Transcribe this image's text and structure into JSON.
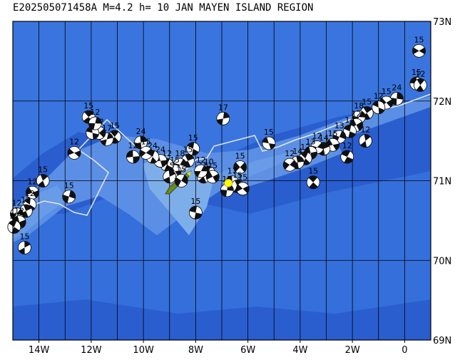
{
  "title": "E202505071458A M=4.2 h= 10 JAN MAYEN ISLAND REGION",
  "map": {
    "lon_range": [
      -15.0,
      1.0
    ],
    "lat_range": [
      69.0,
      73.0
    ],
    "lon_labels": [
      {
        "lon": -14,
        "text": "14W"
      },
      {
        "lon": -12,
        "text": "12W"
      },
      {
        "lon": -10,
        "text": "10W"
      },
      {
        "lon": -8,
        "text": "8W"
      },
      {
        "lon": -6,
        "text": "6W"
      },
      {
        "lon": -4,
        "text": "4W"
      },
      {
        "lon": -2,
        "text": "2W"
      },
      {
        "lon": 0,
        "text": "0"
      }
    ],
    "lat_labels": [
      {
        "lat": 73,
        "text": "73N"
      },
      {
        "lat": 72,
        "text": "72N"
      },
      {
        "lat": 71,
        "text": "71N"
      },
      {
        "lat": 70,
        "text": "70N"
      },
      {
        "lat": 69,
        "text": "69N"
      }
    ],
    "grid_lons": [
      -14,
      -13,
      -12,
      -11,
      -10,
      -9,
      -8,
      -7,
      -6,
      -5,
      -4,
      -3,
      -2,
      -1,
      0
    ],
    "grid_lats": [
      70,
      71,
      72
    ],
    "colors": {
      "ocean_deep": "#2a5ecf",
      "ocean_mid": "#3a75df",
      "ridge": "#5b8fe6",
      "shelf": "#7eaeea",
      "grid": "#000000",
      "plate_boundary": "#e6e6e6",
      "island": "#6a8a1a",
      "epicenter": "#ffff00"
    },
    "island_name_hidden": "",
    "epicenter": {
      "lon": -6.75,
      "lat": 70.97
    }
  },
  "mechanisms": [
    {
      "lon": 0.55,
      "lat": 72.63,
      "depth": "15"
    },
    {
      "lon": 0.45,
      "lat": 72.22,
      "depth": "15"
    },
    {
      "lon": 0.6,
      "lat": 72.2,
      "depth": "12"
    },
    {
      "lon": -0.3,
      "lat": 72.03,
      "depth": "24"
    },
    {
      "lon": -0.7,
      "lat": 71.98,
      "depth": "15"
    },
    {
      "lon": -1.0,
      "lat": 71.92,
      "depth": "12"
    },
    {
      "lon": -1.45,
      "lat": 71.85,
      "depth": "15"
    },
    {
      "lon": -1.75,
      "lat": 71.8,
      "depth": "18"
    },
    {
      "lon": -1.85,
      "lat": 71.7,
      "depth": "12"
    },
    {
      "lon": -2.1,
      "lat": 71.62,
      "depth": "14"
    },
    {
      "lon": -1.5,
      "lat": 71.5,
      "depth": "12"
    },
    {
      "lon": -2.5,
      "lat": 71.55,
      "depth": "13"
    },
    {
      "lon": -2.75,
      "lat": 71.45,
      "depth": "15"
    },
    {
      "lon": -2.2,
      "lat": 71.3,
      "depth": "12"
    },
    {
      "lon": -3.1,
      "lat": 71.4,
      "depth": "14"
    },
    {
      "lon": -3.35,
      "lat": 71.42,
      "depth": "12"
    },
    {
      "lon": -3.6,
      "lat": 71.35,
      "depth": "13"
    },
    {
      "lon": -3.8,
      "lat": 71.28,
      "depth": "12"
    },
    {
      "lon": -4.1,
      "lat": 71.23,
      "depth": "14"
    },
    {
      "lon": -4.4,
      "lat": 71.2,
      "depth": "12"
    },
    {
      "lon": -5.2,
      "lat": 71.47,
      "depth": "15"
    },
    {
      "lon": -3.5,
      "lat": 70.98,
      "depth": "15"
    },
    {
      "lon": -6.95,
      "lat": 71.78,
      "depth": "17"
    },
    {
      "lon": -6.3,
      "lat": 71.17,
      "depth": "15"
    },
    {
      "lon": -6.6,
      "lat": 70.98,
      "depth": "17"
    },
    {
      "lon": -6.4,
      "lat": 70.93,
      "depth": "15"
    },
    {
      "lon": -6.8,
      "lat": 70.88,
      "depth": "15"
    },
    {
      "lon": -6.2,
      "lat": 70.9,
      "depth": "15"
    },
    {
      "lon": -7.5,
      "lat": 71.1,
      "depth": "10"
    },
    {
      "lon": -7.7,
      "lat": 71.05,
      "depth": "15"
    },
    {
      "lon": -7.8,
      "lat": 71.12,
      "depth": "12"
    },
    {
      "lon": -7.35,
      "lat": 71.05,
      "depth": "15"
    },
    {
      "lon": -8.1,
      "lat": 71.4,
      "depth": "15"
    },
    {
      "lon": -8.3,
      "lat": 71.25,
      "depth": "15"
    },
    {
      "lon": -8.6,
      "lat": 71.2,
      "depth": "18"
    },
    {
      "lon": -8.8,
      "lat": 71.12,
      "depth": "15"
    },
    {
      "lon": -9.1,
      "lat": 71.2,
      "depth": "12"
    },
    {
      "lon": -9.0,
      "lat": 71.05,
      "depth": "15"
    },
    {
      "lon": -8.55,
      "lat": 71.0,
      "depth": "15"
    },
    {
      "lon": -9.35,
      "lat": 71.25,
      "depth": "24"
    },
    {
      "lon": -9.65,
      "lat": 71.3,
      "depth": "24"
    },
    {
      "lon": -10.1,
      "lat": 71.48,
      "depth": "24"
    },
    {
      "lon": -9.9,
      "lat": 71.35,
      "depth": "15"
    },
    {
      "lon": -10.4,
      "lat": 71.3,
      "depth": "12"
    },
    {
      "lon": -11.1,
      "lat": 71.55,
      "depth": "15"
    },
    {
      "lon": -11.4,
      "lat": 71.52,
      "depth": "17"
    },
    {
      "lon": -11.7,
      "lat": 71.6,
      "depth": "12"
    },
    {
      "lon": -11.95,
      "lat": 71.6,
      "depth": "12"
    },
    {
      "lon": -12.1,
      "lat": 71.8,
      "depth": "15"
    },
    {
      "lon": -11.85,
      "lat": 71.72,
      "depth": "12"
    },
    {
      "lon": -12.65,
      "lat": 71.35,
      "depth": "12"
    },
    {
      "lon": -8.0,
      "lat": 70.6,
      "depth": "15"
    },
    {
      "lon": -13.85,
      "lat": 71.0,
      "depth": "15"
    },
    {
      "lon": -12.85,
      "lat": 70.8,
      "depth": "15"
    },
    {
      "lon": -14.25,
      "lat": 70.85,
      "depth": "12"
    },
    {
      "lon": -14.35,
      "lat": 70.7,
      "depth": "12"
    },
    {
      "lon": -14.5,
      "lat": 70.62,
      "depth": "12"
    },
    {
      "lon": -14.85,
      "lat": 70.58,
      "depth": "12"
    },
    {
      "lon": -14.75,
      "lat": 70.48,
      "depth": "12"
    },
    {
      "lon": -14.95,
      "lat": 70.42,
      "depth": "12"
    },
    {
      "lon": -14.55,
      "lat": 70.16,
      "depth": "15"
    }
  ]
}
